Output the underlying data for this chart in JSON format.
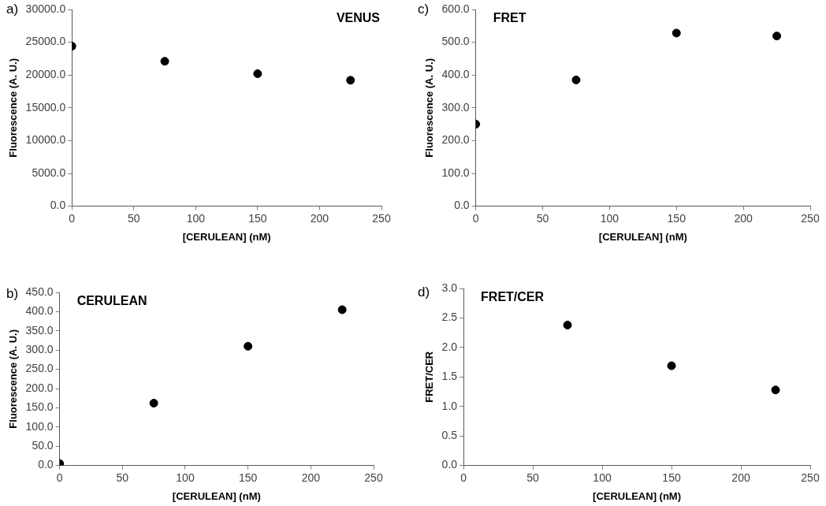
{
  "chart_data": [
    {
      "type": "scatter",
      "title": "VENUS",
      "annotations": [
        "a)"
      ],
      "xlabel": "[CERULEAN] (nM)",
      "ylabel": "Fluorescence (A. U.)",
      "x": [
        0,
        75,
        150,
        225
      ],
      "values": [
        24400,
        22100,
        20200,
        19200
      ],
      "color": "#000000",
      "marker": "circle",
      "xlim": [
        0,
        250
      ],
      "xticks": [
        0,
        50,
        100,
        150,
        200,
        250
      ],
      "ylim": [
        0,
        30000
      ],
      "yticks": [
        {
          "value": 0,
          "label": "0.0"
        },
        {
          "value": 5000,
          "label": "5000.0"
        },
        {
          "value": 10000,
          "label": "10000.0"
        },
        {
          "value": 15000,
          "label": "15000.0"
        },
        {
          "value": 20000,
          "label": "20000.0"
        },
        {
          "value": 25000,
          "label": "25000.0"
        },
        {
          "value": 30000,
          "label": "30000.0"
        }
      ],
      "grid": false,
      "legend": false
    },
    {
      "type": "scatter",
      "title": "FRET",
      "annotations": [
        "c)"
      ],
      "xlabel": "[CERULEAN] (nM)",
      "ylabel": "Fluorescence (A. U.)",
      "x": [
        0,
        75,
        150,
        225
      ],
      "values": [
        250,
        385,
        528,
        519
      ],
      "color": "#000000",
      "marker": "circle",
      "xlim": [
        0,
        250
      ],
      "xticks": [
        0,
        50,
        100,
        150,
        200,
        250
      ],
      "ylim": [
        0,
        600
      ],
      "yticks": [
        {
          "value": 0,
          "label": "0.0"
        },
        {
          "value": 100,
          "label": "100.0"
        },
        {
          "value": 200,
          "label": "200.0"
        },
        {
          "value": 300,
          "label": "300.0"
        },
        {
          "value": 400,
          "label": "400.0"
        },
        {
          "value": 500,
          "label": "500.0"
        },
        {
          "value": 600,
          "label": "600.0"
        }
      ],
      "grid": false,
      "legend": false
    },
    {
      "type": "scatter",
      "title": "CERULEAN",
      "annotations": [
        "b)"
      ],
      "xlabel": "[CERULEAN] (nM)",
      "ylabel": "Fluorescence (A. U.)",
      "x": [
        0,
        75,
        150,
        225
      ],
      "values": [
        5,
        162,
        310,
        405
      ],
      "color": "#000000",
      "marker": "circle",
      "xlim": [
        0,
        250
      ],
      "xticks": [
        0,
        50,
        100,
        150,
        200,
        250
      ],
      "ylim": [
        0,
        450
      ],
      "yticks": [
        {
          "value": 0,
          "label": "0.0"
        },
        {
          "value": 50,
          "label": "50.0"
        },
        {
          "value": 100,
          "label": "100.0"
        },
        {
          "value": 150,
          "label": "150.0"
        },
        {
          "value": 200,
          "label": "200.0"
        },
        {
          "value": 250,
          "label": "250.0"
        },
        {
          "value": 300,
          "label": "300.0"
        },
        {
          "value": 350,
          "label": "350.0"
        },
        {
          "value": 400,
          "label": "400.0"
        },
        {
          "value": 450,
          "label": "450.0"
        }
      ],
      "grid": false,
      "legend": false
    },
    {
      "type": "scatter",
      "title": "FRET/CER",
      "annotations": [
        "d)"
      ],
      "xlabel": "[CERULEAN] (nM)",
      "ylabel": "FRET/CER",
      "x": [
        75,
        150,
        225
      ],
      "values": [
        2.38,
        1.69,
        1.28
      ],
      "color": "#000000",
      "marker": "circle",
      "xlim": [
        0,
        250
      ],
      "xticks": [
        0,
        50,
        100,
        150,
        200,
        250
      ],
      "ylim": [
        0,
        3
      ],
      "yticks": [
        {
          "value": 0,
          "label": "0.0"
        },
        {
          "value": 0.5,
          "label": "0.5"
        },
        {
          "value": 1,
          "label": "1.0"
        },
        {
          "value": 1.5,
          "label": "1.5"
        },
        {
          "value": 2,
          "label": "2.0"
        },
        {
          "value": 2.5,
          "label": "2.5"
        },
        {
          "value": 3,
          "label": "3.0"
        }
      ],
      "grid": false,
      "legend": false
    }
  ]
}
